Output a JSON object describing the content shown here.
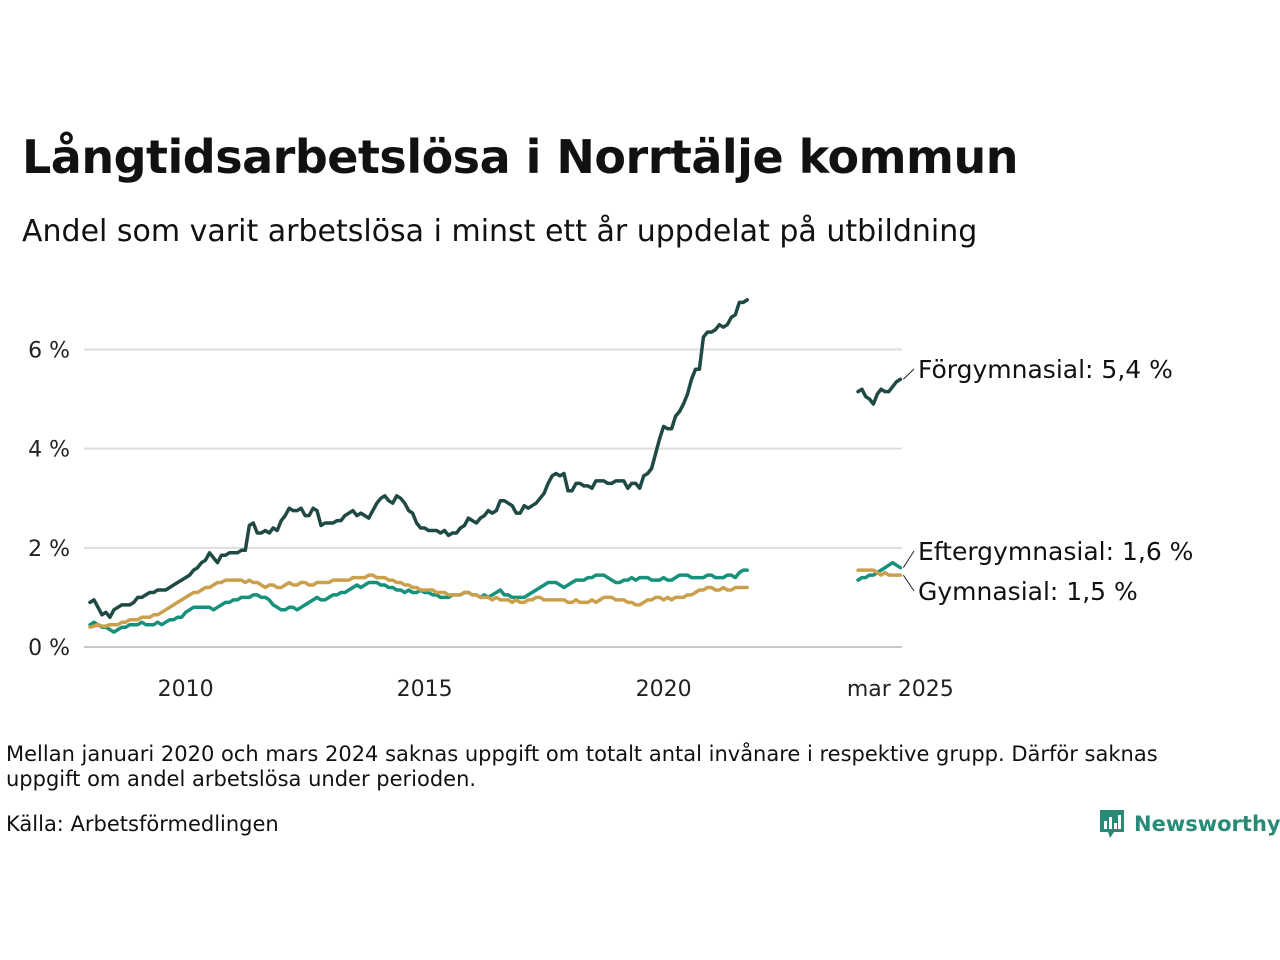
{
  "title": "Långtidsarbetslösa i Norrtälje kommun",
  "subtitle": "Andel som varit arbetslösa i minst ett år uppdelat på utbildning",
  "note": "Mellan januari 2020 och mars 2024 saknas uppgift om totalt antal invånare i respektive grupp. Därför saknas uppgift om andel arbetslösa under perioden.",
  "source": "Källa: Arbetsförmedlingen",
  "brand": "Newsworthy",
  "chart_data": {
    "type": "line",
    "x_tick_labels": [
      "2010",
      "2015",
      "2020",
      "mar 2025"
    ],
    "y_tick_labels": [
      "0 %",
      "2 %",
      "4 %",
      "6 %"
    ],
    "ylim": [
      0,
      7.2
    ],
    "grid": true,
    "series_labels": [
      "Förgymnasial: 5,4 %",
      "Eftergymnasial: 1,6 %",
      "Gymnasial: 1,5 %"
    ],
    "series": [
      {
        "id": "forgymnasial",
        "color": "#1f4a43",
        "segment1": {
          "start": "2008-01",
          "values": [
            0.9,
            0.95,
            0.8,
            0.65,
            0.7,
            0.6,
            0.75,
            0.8,
            0.85,
            0.85,
            0.85,
            0.9,
            1.0,
            1.0,
            1.05,
            1.1,
            1.1,
            1.15,
            1.15,
            1.15,
            1.2,
            1.25,
            1.3,
            1.35,
            1.4,
            1.45,
            1.55,
            1.6,
            1.7,
            1.75,
            1.9,
            1.8,
            1.7,
            1.85,
            1.85,
            1.9,
            1.9,
            1.9,
            1.95,
            1.95,
            2.45,
            2.5,
            2.3,
            2.3,
            2.35,
            2.3,
            2.4,
            2.35,
            2.55,
            2.65,
            2.8,
            2.75,
            2.75,
            2.8,
            2.65,
            2.65,
            2.8,
            2.75,
            2.45,
            2.5,
            2.5,
            2.5,
            2.55,
            2.55,
            2.65,
            2.7,
            2.75,
            2.65,
            2.7,
            2.65,
            2.6,
            2.75,
            2.9,
            3.0,
            3.05,
            2.95,
            2.9,
            3.05,
            3.0,
            2.9,
            2.75,
            2.7,
            2.5,
            2.4,
            2.4,
            2.35,
            2.35,
            2.35,
            2.3,
            2.35,
            2.25,
            2.3,
            2.3,
            2.4,
            2.45,
            2.6,
            2.55,
            2.5,
            2.6,
            2.65,
            2.75,
            2.7,
            2.75,
            2.95,
            2.95,
            2.9,
            2.85,
            2.7,
            2.7,
            2.85,
            2.8,
            2.85,
            2.9,
            3.0,
            3.1,
            3.3,
            3.45,
            3.5,
            3.45,
            3.5,
            3.15,
            3.15,
            3.3,
            3.3,
            3.25,
            3.25,
            3.2,
            3.35,
            3.35,
            3.35,
            3.3,
            3.3,
            3.35,
            3.35,
            3.35,
            3.2,
            3.3,
            3.3,
            3.2,
            3.45,
            3.5,
            3.6,
            3.9,
            4.2,
            4.45,
            4.4,
            4.4,
            4.65,
            4.75,
            4.9,
            5.1,
            5.4,
            5.6,
            5.6,
            6.25,
            6.35,
            6.35,
            6.4,
            6.5,
            6.45,
            6.5,
            6.65,
            6.7,
            6.95,
            6.95,
            7.0
          ]
        },
        "segment2": {
          "start": "2024-04",
          "values": [
            5.15,
            5.2,
            5.05,
            5.0,
            4.9,
            5.1,
            5.2,
            5.15,
            5.15,
            5.25,
            5.35,
            5.4
          ]
        }
      },
      {
        "id": "eftergymnasial",
        "color": "#16917c",
        "segment1": {
          "start": "2008-01",
          "values": [
            0.45,
            0.5,
            0.45,
            0.4,
            0.4,
            0.35,
            0.3,
            0.35,
            0.4,
            0.4,
            0.45,
            0.45,
            0.45,
            0.5,
            0.45,
            0.45,
            0.45,
            0.5,
            0.45,
            0.5,
            0.55,
            0.55,
            0.6,
            0.6,
            0.7,
            0.75,
            0.8,
            0.8,
            0.8,
            0.8,
            0.8,
            0.75,
            0.8,
            0.85,
            0.9,
            0.9,
            0.95,
            0.95,
            1.0,
            1.0,
            1.0,
            1.05,
            1.05,
            1.0,
            1.0,
            0.95,
            0.85,
            0.8,
            0.75,
            0.75,
            0.8,
            0.8,
            0.75,
            0.8,
            0.85,
            0.9,
            0.95,
            1.0,
            0.95,
            0.95,
            1.0,
            1.05,
            1.05,
            1.1,
            1.1,
            1.15,
            1.2,
            1.25,
            1.2,
            1.25,
            1.3,
            1.3,
            1.3,
            1.25,
            1.25,
            1.2,
            1.2,
            1.15,
            1.15,
            1.1,
            1.15,
            1.1,
            1.1,
            1.15,
            1.1,
            1.1,
            1.05,
            1.05,
            1.0,
            1.0,
            1.0,
            1.05,
            1.05,
            1.05,
            1.1,
            1.1,
            1.05,
            1.05,
            1.0,
            1.05,
            1.0,
            1.05,
            1.1,
            1.15,
            1.05,
            1.05,
            1.0,
            1.0,
            1.0,
            1.0,
            1.05,
            1.1,
            1.15,
            1.2,
            1.25,
            1.3,
            1.3,
            1.3,
            1.25,
            1.2,
            1.25,
            1.3,
            1.35,
            1.35,
            1.35,
            1.4,
            1.4,
            1.45,
            1.45,
            1.45,
            1.4,
            1.35,
            1.3,
            1.3,
            1.35,
            1.35,
            1.4,
            1.35,
            1.4,
            1.4,
            1.4,
            1.35,
            1.35,
            1.35,
            1.4,
            1.35,
            1.35,
            1.4,
            1.45,
            1.45,
            1.45,
            1.4,
            1.4,
            1.4,
            1.4,
            1.45,
            1.45,
            1.4,
            1.4,
            1.4,
            1.45,
            1.45,
            1.4,
            1.5,
            1.55,
            1.55
          ]
        },
        "segment2": {
          "start": "2024-04",
          "values": [
            1.35,
            1.4,
            1.4,
            1.45,
            1.45,
            1.5,
            1.55,
            1.6,
            1.65,
            1.7,
            1.65,
            1.6
          ]
        }
      },
      {
        "id": "gymnasial",
        "color": "#caa04c",
        "segment1": {
          "start": "2008-01",
          "values": [
            0.4,
            0.42,
            0.45,
            0.42,
            0.42,
            0.45,
            0.45,
            0.45,
            0.5,
            0.5,
            0.55,
            0.55,
            0.55,
            0.6,
            0.6,
            0.6,
            0.65,
            0.65,
            0.7,
            0.75,
            0.8,
            0.85,
            0.9,
            0.95,
            1.0,
            1.05,
            1.1,
            1.1,
            1.15,
            1.2,
            1.2,
            1.25,
            1.3,
            1.3,
            1.35,
            1.35,
            1.35,
            1.35,
            1.35,
            1.3,
            1.35,
            1.3,
            1.3,
            1.25,
            1.2,
            1.25,
            1.25,
            1.2,
            1.2,
            1.25,
            1.3,
            1.25,
            1.25,
            1.3,
            1.3,
            1.25,
            1.25,
            1.3,
            1.3,
            1.3,
            1.3,
            1.35,
            1.35,
            1.35,
            1.35,
            1.35,
            1.4,
            1.4,
            1.4,
            1.4,
            1.45,
            1.45,
            1.4,
            1.4,
            1.4,
            1.35,
            1.35,
            1.3,
            1.3,
            1.25,
            1.25,
            1.2,
            1.2,
            1.15,
            1.15,
            1.15,
            1.15,
            1.1,
            1.1,
            1.1,
            1.05,
            1.05,
            1.05,
            1.05,
            1.1,
            1.1,
            1.05,
            1.05,
            1.0,
            1.0,
            1.0,
            0.95,
            1.0,
            0.95,
            0.95,
            0.95,
            0.9,
            0.95,
            0.9,
            0.9,
            0.95,
            0.95,
            1.0,
            1.0,
            0.95,
            0.95,
            0.95,
            0.95,
            0.95,
            0.95,
            0.9,
            0.9,
            0.95,
            0.9,
            0.9,
            0.9,
            0.95,
            0.9,
            0.95,
            1.0,
            1.0,
            1.0,
            0.95,
            0.95,
            0.95,
            0.9,
            0.9,
            0.85,
            0.85,
            0.9,
            0.95,
            0.95,
            1.0,
            1.0,
            0.95,
            1.0,
            0.95,
            1.0,
            1.0,
            1.0,
            1.05,
            1.05,
            1.1,
            1.15,
            1.15,
            1.2,
            1.2,
            1.15,
            1.15,
            1.2,
            1.15,
            1.15,
            1.2,
            1.2,
            1.2,
            1.2
          ]
        },
        "segment2": {
          "start": "2024-04",
          "values": [
            1.55,
            1.55,
            1.55,
            1.55,
            1.55,
            1.5,
            1.45,
            1.5,
            1.45,
            1.45,
            1.45,
            1.45
          ]
        }
      }
    ]
  }
}
